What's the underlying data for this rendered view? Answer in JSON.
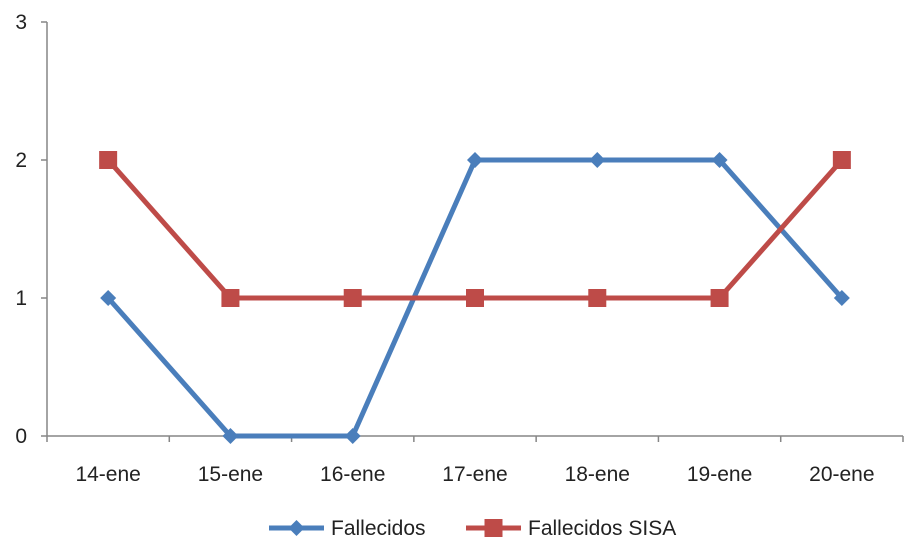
{
  "chart_data": {
    "type": "line",
    "categories": [
      "14-ene",
      "15-ene",
      "16-ene",
      "17-ene",
      "18-ene",
      "19-ene",
      "20-ene"
    ],
    "ylim": [
      0,
      3
    ],
    "yticks": [
      0,
      1,
      2,
      3
    ],
    "ytick_labels": [
      "0",
      "1",
      "2",
      "3"
    ],
    "grid": false,
    "legend_position": "bottom",
    "series": [
      {
        "name": "Fallecidos",
        "values": [
          1,
          0,
          0,
          2,
          2,
          2,
          1
        ],
        "color": "#4a7ebb",
        "marker": "diamond"
      },
      {
        "name": "Fallecidos SISA",
        "values": [
          2,
          1,
          1,
          1,
          1,
          1,
          2
        ],
        "color": "#be4b48",
        "marker": "square"
      }
    ]
  }
}
